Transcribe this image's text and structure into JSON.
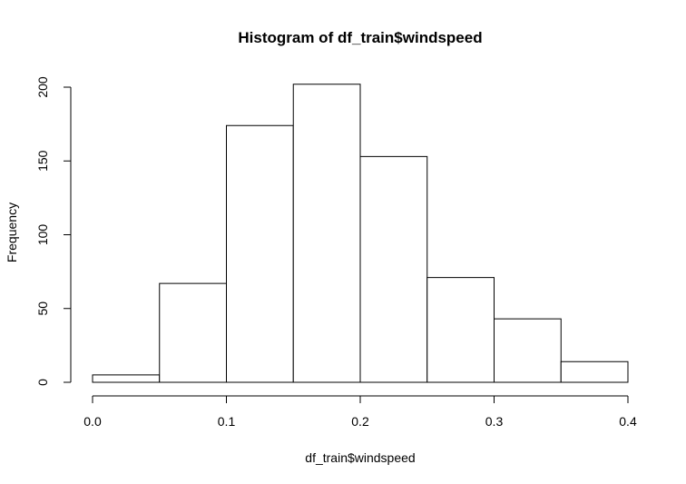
{
  "chart_data": {
    "type": "bar",
    "title": "Histogram of df_train$windspeed",
    "xlabel": "df_train$windspeed",
    "ylabel": "Frequency",
    "bins": [
      {
        "from": 0.0,
        "to": 0.05,
        "count": 5
      },
      {
        "from": 0.05,
        "to": 0.1,
        "count": 67
      },
      {
        "from": 0.1,
        "to": 0.15,
        "count": 174
      },
      {
        "from": 0.15,
        "to": 0.2,
        "count": 202
      },
      {
        "from": 0.2,
        "to": 0.25,
        "count": 153
      },
      {
        "from": 0.25,
        "to": 0.3,
        "count": 71
      },
      {
        "from": 0.3,
        "to": 0.35,
        "count": 43
      },
      {
        "from": 0.35,
        "to": 0.4,
        "count": 14
      }
    ],
    "xlim": [
      0.0,
      0.4
    ],
    "ylim": [
      0,
      200
    ],
    "x_ticks": [
      "0.0",
      "0.1",
      "0.2",
      "0.3",
      "0.4"
    ],
    "y_ticks": [
      "0",
      "50",
      "100",
      "150",
      "200"
    ],
    "grid": false,
    "colors": {
      "bar_fill": "#ffffff",
      "bar_stroke": "#000000",
      "axis": "#000000"
    }
  }
}
